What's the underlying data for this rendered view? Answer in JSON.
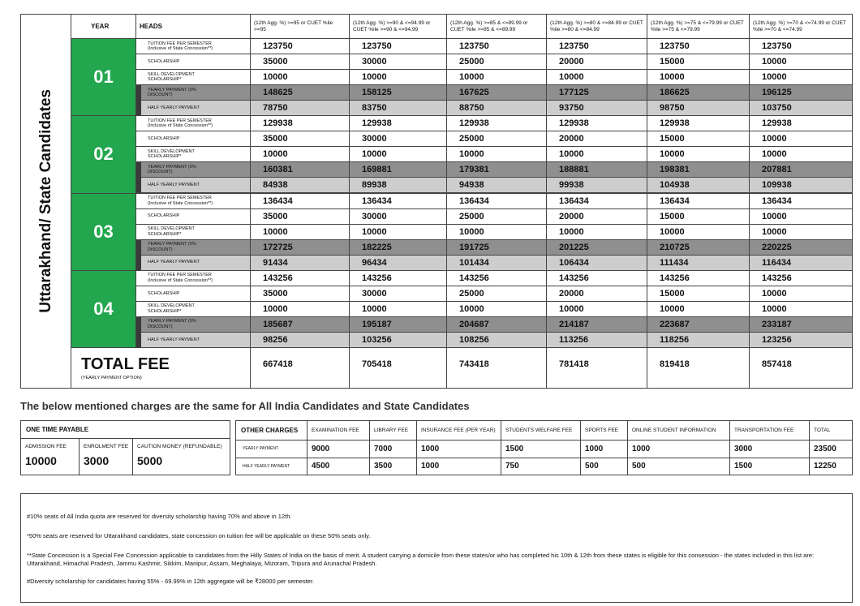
{
  "main_table": {
    "side_label": "Uttarakhand/ State Candidates",
    "headers": [
      "YEAR",
      "HEADS",
      "(12th Agg. %) >=95 or CUET %ile >=95",
      "(12th Agg. %) >=90 & <=94.99 or CUET %ile >=90 & <=94.99",
      "(12th Agg. %) >=85 & <=89.99 or CUET %ile >=85 & <=89.99",
      "(12th Agg. %) >=80 & <=84.99 or CUET %ile >=80 & <=84.99",
      "(12th Agg. %) >=75 & <=79.99 or CUET %ile >=75 & <=79.99",
      "(12th Agg. %) >=70 & <=74.99 or CUET %ile >=70 & <=74.99"
    ],
    "years": [
      {
        "year": "01",
        "rows": [
          {
            "head": "TUITION FEE PER SEMESTER (Inclusive of State Concession**)",
            "values": [
              123750,
              123750,
              123750,
              123750,
              123750,
              123750
            ]
          },
          {
            "head": "SCHOLARSHIP",
            "values": [
              35000,
              30000,
              25000,
              20000,
              15000,
              10000
            ]
          },
          {
            "head": "SKILL DEVELOPMENT SCHOLARSHIP*",
            "values": [
              10000,
              10000,
              10000,
              10000,
              10000,
              10000
            ]
          },
          {
            "head": "YEARLY PAYMENT (5% DISCOUNT)",
            "values": [
              148625,
              158125,
              167625,
              177125,
              186625,
              196125
            ]
          },
          {
            "head": "HALF YEARLY PAYMENT",
            "values": [
              78750,
              83750,
              88750,
              93750,
              98750,
              103750
            ]
          }
        ]
      },
      {
        "year": "02",
        "rows": [
          {
            "head": "TUITION FEE PER SEMESTER (Inclusive of State Concession**)",
            "values": [
              129938,
              129938,
              129938,
              129938,
              129938,
              129938
            ]
          },
          {
            "head": "SCHOLARSHIP",
            "values": [
              35000,
              30000,
              25000,
              20000,
              15000,
              10000
            ]
          },
          {
            "head": "SKILL DEVELOPMENT SCHOLARSHIP*",
            "values": [
              10000,
              10000,
              10000,
              10000,
              10000,
              10000
            ]
          },
          {
            "head": "YEARLY PAYMENT (5% DISCOUNT)",
            "values": [
              160381,
              169881,
              179381,
              188881,
              198381,
              207881
            ]
          },
          {
            "head": "HALF YEARLY PAYMENT",
            "values": [
              84938,
              89938,
              94938,
              99938,
              104938,
              109938
            ]
          }
        ]
      },
      {
        "year": "03",
        "rows": [
          {
            "head": "TUITION FEE PER SEMESTER (Inclusive of State Concession**)",
            "values": [
              136434,
              136434,
              136434,
              136434,
              136434,
              136434
            ]
          },
          {
            "head": "SCHOLARSHIP",
            "values": [
              35000,
              30000,
              25000,
              20000,
              15000,
              10000
            ]
          },
          {
            "head": "SKILL DEVELOPMENT SCHOLARSHIP*",
            "values": [
              10000,
              10000,
              10000,
              10000,
              10000,
              10000
            ]
          },
          {
            "head": "YEARLY PAYMENT (5% DISCOUNT)",
            "values": [
              172725,
              182225,
              191725,
              201225,
              210725,
              220225
            ]
          },
          {
            "head": "HALF YEARLY PAYMENT",
            "values": [
              91434,
              96434,
              101434,
              106434,
              111434,
              116434
            ]
          }
        ]
      },
      {
        "year": "04",
        "rows": [
          {
            "head": "TUITION FEE PER SEMESTER (Inclusive of State Concession**)",
            "values": [
              143256,
              143256,
              143256,
              143256,
              143256,
              143256
            ]
          },
          {
            "head": "SCHOLARSHIP",
            "values": [
              35000,
              30000,
              25000,
              20000,
              15000,
              10000
            ]
          },
          {
            "head": "SKILL DEVELOPMENT SCHOLARSHIP*",
            "values": [
              10000,
              10000,
              10000,
              10000,
              10000,
              10000
            ]
          },
          {
            "head": "YEARLY PAYMENT (5% DISCOUNT)",
            "values": [
              185687,
              195187,
              204687,
              214187,
              223687,
              233187
            ]
          },
          {
            "head": "HALF YEARLY PAYMENT",
            "values": [
              98256,
              103256,
              108256,
              113256,
              118256,
              123256
            ]
          }
        ]
      }
    ],
    "total": {
      "label": "TOTAL FEE",
      "sublabel": "(YEARLY PAYMENT OPTION)",
      "values": [
        667418,
        705418,
        743418,
        781418,
        819418,
        857418
      ]
    }
  },
  "common_note": "The below mentioned charges are the same for All India Candidates and State Candidates",
  "one_time": {
    "title": "ONE TIME PAYABLE",
    "items": [
      {
        "label": "ADMISSION FEE",
        "value": 10000
      },
      {
        "label": "ENROLMENT FEE",
        "value": 3000
      },
      {
        "label": "CAUTION MONEY (REFUNDABLE)",
        "value": 5000
      }
    ]
  },
  "other_charges": {
    "headers": [
      "OTHER CHARGES",
      "EXAMINATION FEE",
      "LIBRARY FEE",
      "INSURANCE FEE (PER YEAR)",
      "STUDENTS WELFARE FEE",
      "SPORTS FEE",
      "ONLINE STUDENT INFORMATION",
      "TRANSPORTATION FEE",
      "TOTAL"
    ],
    "rows": [
      {
        "label": "YEARLY PAYMENT",
        "values": [
          9000,
          7000,
          1000,
          1500,
          1000,
          1000,
          3000,
          23500
        ]
      },
      {
        "label": "HALF YEARLY PAYMENT",
        "values": [
          4500,
          3500,
          1000,
          750,
          500,
          500,
          1500,
          12250
        ]
      }
    ]
  },
  "notes": [
    "#10% seats of All India quota are reserved for diversity scholarship having 70% and above in 12th.",
    "*50% seats are reserved for Uttarakhand candidates, state concession on tuition fee will be applicable on these 50% seats only.",
    "**State Concession is a Special Fee Concession applicable to candidates from the Hilly States of India on the basis of merit. A student carrying a domicile from these states/or who has completed his 10th & 12th from these states is eligible for this consession - the states included in this list are: Uttarakhand, Himachal Pradesh, Jammu Kashmir, Sikkim, Manipur, Assam, Meghalaya, Mizoram, Tripura and Arunachal Pradesh.",
    "#Diversity scholarship for candidates having 55% - 69.99% in 12th aggregate will be ₹28000 per semester."
  ]
}
